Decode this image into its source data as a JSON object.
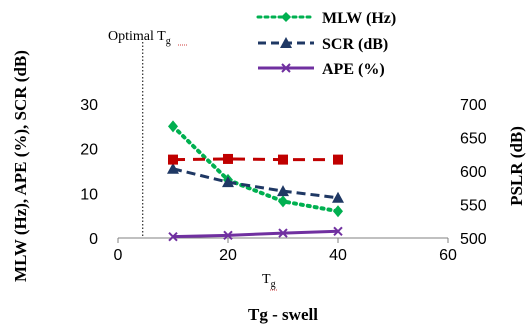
{
  "chart_data": {
    "type": "line",
    "x": [
      10,
      20,
      30,
      40
    ],
    "xlabel": "Tg - swell",
    "xlim": [
      0,
      60
    ],
    "xticks": [
      0,
      20,
      40,
      60
    ],
    "ylabel": "MLW (Hz), APE (%), SCR (dB)",
    "ylim": [
      0,
      30
    ],
    "yticks": [
      0,
      10,
      20,
      30
    ],
    "y2label": "PSLR (dB)",
    "y2lim": [
      500,
      700
    ],
    "y2ticks": [
      500,
      550,
      600,
      650,
      700
    ],
    "grid": false,
    "legend_position": "top-right",
    "series": [
      {
        "name": "MLW (Hz)",
        "axis": "left",
        "values": [
          25,
          13,
          8.2,
          6
        ],
        "color": "#00b050",
        "style": "dotted",
        "marker": "diamond"
      },
      {
        "name": "SCR (dB)",
        "axis": "left",
        "values": [
          15.5,
          12.5,
          10.5,
          9
        ],
        "color": "#1f3864",
        "style": "dashed",
        "marker": "triangle"
      },
      {
        "name": "APE (%)",
        "axis": "left",
        "values": [
          0.3,
          0.6,
          1.1,
          1.5
        ],
        "color": "#7030a0",
        "style": "solid",
        "marker": "x"
      },
      {
        "name": "",
        "axis": "right",
        "values": [
          617,
          618,
          617,
          617
        ],
        "color": "#c00000",
        "style": "dashed",
        "marker": "square"
      }
    ],
    "annotations": {
      "optimal_label": "Optimal T",
      "optimal_sub": "g",
      "optimal_x": 4.5,
      "axis_note_main": "T",
      "axis_note_sub": "g"
    }
  }
}
